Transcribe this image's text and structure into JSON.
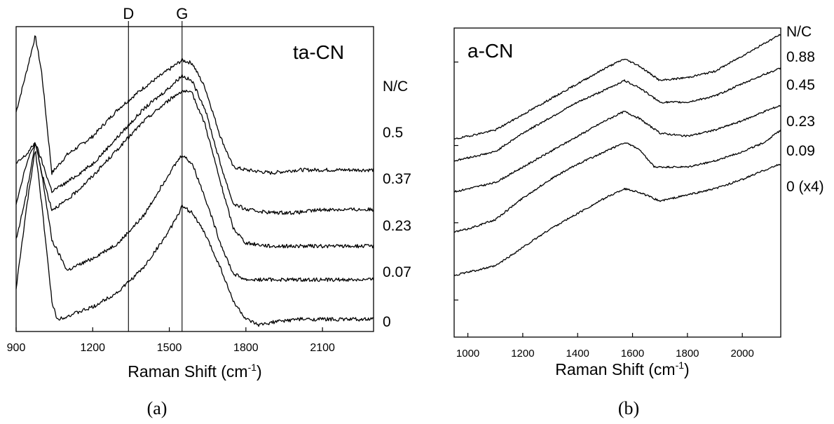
{
  "chart_data": [
    {
      "type": "line",
      "panel_label": "(a)",
      "annotation": "ta-CN",
      "xlabel": "Raman Shift (cm",
      "xlabel_sup": "-1",
      "xlabel_close": ")",
      "xlim": [
        900,
        2300
      ],
      "xticks": [
        900,
        1200,
        1500,
        1800,
        2100
      ],
      "y_axis_labels": false,
      "legend_title": "N/C",
      "reference_lines": [
        {
          "label": "D",
          "x": 1340
        },
        {
          "label": "G",
          "x": 1550
        }
      ],
      "series": [
        {
          "name": "0.5",
          "points": [
            [
              900,
              0.72
            ],
            [
              940,
              0.85
            ],
            [
              975,
              0.97
            ],
            [
              1000,
              0.85
            ],
            [
              1040,
              0.52
            ],
            [
              1100,
              0.58
            ],
            [
              1200,
              0.64
            ],
            [
              1300,
              0.73
            ],
            [
              1400,
              0.8
            ],
            [
              1500,
              0.86
            ],
            [
              1550,
              0.89
            ],
            [
              1590,
              0.88
            ],
            [
              1640,
              0.8
            ],
            [
              1700,
              0.64
            ],
            [
              1750,
              0.54
            ],
            [
              1800,
              0.53
            ],
            [
              1900,
              0.52
            ],
            [
              2000,
              0.53
            ],
            [
              2100,
              0.53
            ],
            [
              2200,
              0.53
            ],
            [
              2300,
              0.53
            ]
          ]
        },
        {
          "name": "0.37",
          "points": [
            [
              900,
              0.55
            ],
            [
              940,
              0.58
            ],
            [
              975,
              0.62
            ],
            [
              1000,
              0.56
            ],
            [
              1040,
              0.46
            ],
            [
              1100,
              0.49
            ],
            [
              1200,
              0.55
            ],
            [
              1300,
              0.64
            ],
            [
              1400,
              0.73
            ],
            [
              1500,
              0.8
            ],
            [
              1550,
              0.84
            ],
            [
              1590,
              0.82
            ],
            [
              1640,
              0.73
            ],
            [
              1700,
              0.55
            ],
            [
              1750,
              0.42
            ],
            [
              1800,
              0.4
            ],
            [
              1900,
              0.39
            ],
            [
              2000,
              0.39
            ],
            [
              2100,
              0.4
            ],
            [
              2200,
              0.4
            ],
            [
              2300,
              0.4
            ]
          ]
        },
        {
          "name": "0.23",
          "points": [
            [
              900,
              0.3
            ],
            [
              940,
              0.45
            ],
            [
              975,
              0.62
            ],
            [
              1000,
              0.52
            ],
            [
              1040,
              0.4
            ],
            [
              1100,
              0.43
            ],
            [
              1200,
              0.51
            ],
            [
              1300,
              0.6
            ],
            [
              1400,
              0.69
            ],
            [
              1500,
              0.76
            ],
            [
              1550,
              0.79
            ],
            [
              1590,
              0.78
            ],
            [
              1640,
              0.68
            ],
            [
              1700,
              0.49
            ],
            [
              1750,
              0.34
            ],
            [
              1800,
              0.29
            ],
            [
              1900,
              0.28
            ],
            [
              2000,
              0.28
            ],
            [
              2100,
              0.28
            ],
            [
              2200,
              0.28
            ],
            [
              2300,
              0.28
            ]
          ]
        },
        {
          "name": "0.07",
          "points": [
            [
              900,
              0.42
            ],
            [
              940,
              0.55
            ],
            [
              975,
              0.62
            ],
            [
              1000,
              0.52
            ],
            [
              1040,
              0.3
            ],
            [
              1100,
              0.2
            ],
            [
              1200,
              0.24
            ],
            [
              1300,
              0.29
            ],
            [
              1400,
              0.38
            ],
            [
              1500,
              0.52
            ],
            [
              1550,
              0.58
            ],
            [
              1590,
              0.55
            ],
            [
              1640,
              0.44
            ],
            [
              1700,
              0.29
            ],
            [
              1750,
              0.19
            ],
            [
              1800,
              0.17
            ],
            [
              1900,
              0.17
            ],
            [
              2000,
              0.17
            ],
            [
              2100,
              0.17
            ],
            [
              2200,
              0.17
            ],
            [
              2300,
              0.17
            ]
          ]
        },
        {
          "name": "0",
          "points": [
            [
              900,
              0.14
            ],
            [
              940,
              0.4
            ],
            [
              975,
              0.6
            ],
            [
              1000,
              0.42
            ],
            [
              1040,
              0.1
            ],
            [
              1060,
              0.04
            ],
            [
              1100,
              0.05
            ],
            [
              1200,
              0.08
            ],
            [
              1300,
              0.13
            ],
            [
              1400,
              0.21
            ],
            [
              1500,
              0.33
            ],
            [
              1550,
              0.41
            ],
            [
              1590,
              0.39
            ],
            [
              1640,
              0.32
            ],
            [
              1700,
              0.21
            ],
            [
              1750,
              0.1
            ],
            [
              1800,
              0.04
            ],
            [
              1850,
              0.02
            ],
            [
              1900,
              0.03
            ],
            [
              2000,
              0.04
            ],
            [
              2100,
              0.04
            ],
            [
              2200,
              0.04
            ],
            [
              2300,
              0.04
            ]
          ]
        }
      ]
    },
    {
      "type": "line",
      "panel_label": "(b)",
      "annotation": "a-CN",
      "xlabel": "Raman Shift (cm",
      "xlabel_sup": "-1",
      "xlabel_close": ")",
      "xlim": [
        950,
        2140
      ],
      "xticks": [
        1000,
        1200,
        1400,
        1600,
        1800,
        2000
      ],
      "y_axis_labels": false,
      "legend_title": "N/C",
      "series": [
        {
          "name": "0.88",
          "points": [
            [
              950,
              0.64
            ],
            [
              1000,
              0.65
            ],
            [
              1100,
              0.67
            ],
            [
              1200,
              0.72
            ],
            [
              1300,
              0.77
            ],
            [
              1400,
              0.82
            ],
            [
              1500,
              0.87
            ],
            [
              1570,
              0.9
            ],
            [
              1620,
              0.88
            ],
            [
              1700,
              0.83
            ],
            [
              1800,
              0.84
            ],
            [
              1900,
              0.86
            ],
            [
              2000,
              0.91
            ],
            [
              2080,
              0.95
            ],
            [
              2140,
              0.98
            ]
          ]
        },
        {
          "name": "0.45",
          "points": [
            [
              950,
              0.57
            ],
            [
              1000,
              0.58
            ],
            [
              1100,
              0.6
            ],
            [
              1200,
              0.66
            ],
            [
              1300,
              0.71
            ],
            [
              1400,
              0.76
            ],
            [
              1500,
              0.8
            ],
            [
              1570,
              0.83
            ],
            [
              1620,
              0.81
            ],
            [
              1700,
              0.76
            ],
            [
              1800,
              0.76
            ],
            [
              1900,
              0.78
            ],
            [
              2000,
              0.82
            ],
            [
              2080,
              0.85
            ],
            [
              2140,
              0.87
            ]
          ]
        },
        {
          "name": "0.23",
          "points": [
            [
              950,
              0.47
            ],
            [
              1000,
              0.48
            ],
            [
              1100,
              0.5
            ],
            [
              1200,
              0.55
            ],
            [
              1300,
              0.6
            ],
            [
              1400,
              0.65
            ],
            [
              1500,
              0.7
            ],
            [
              1570,
              0.73
            ],
            [
              1620,
              0.71
            ],
            [
              1700,
              0.66
            ],
            [
              1800,
              0.65
            ],
            [
              1900,
              0.67
            ],
            [
              2000,
              0.7
            ],
            [
              2080,
              0.73
            ],
            [
              2140,
              0.75
            ]
          ]
        },
        {
          "name": "0.09",
          "points": [
            [
              950,
              0.34
            ],
            [
              1000,
              0.35
            ],
            [
              1100,
              0.38
            ],
            [
              1200,
              0.45
            ],
            [
              1300,
              0.51
            ],
            [
              1400,
              0.56
            ],
            [
              1500,
              0.6
            ],
            [
              1570,
              0.63
            ],
            [
              1620,
              0.61
            ],
            [
              1680,
              0.55
            ],
            [
              1800,
              0.55
            ],
            [
              1900,
              0.57
            ],
            [
              2000,
              0.6
            ],
            [
              2080,
              0.63
            ],
            [
              2140,
              0.67
            ]
          ]
        },
        {
          "name": "0 (x4)",
          "points": [
            [
              950,
              0.2
            ],
            [
              1000,
              0.21
            ],
            [
              1100,
              0.23
            ],
            [
              1200,
              0.29
            ],
            [
              1300,
              0.35
            ],
            [
              1400,
              0.4
            ],
            [
              1500,
              0.45
            ],
            [
              1570,
              0.48
            ],
            [
              1620,
              0.47
            ],
            [
              1700,
              0.44
            ],
            [
              1800,
              0.46
            ],
            [
              1900,
              0.48
            ],
            [
              2000,
              0.51
            ],
            [
              2080,
              0.54
            ],
            [
              2140,
              0.56
            ]
          ]
        }
      ]
    }
  ]
}
